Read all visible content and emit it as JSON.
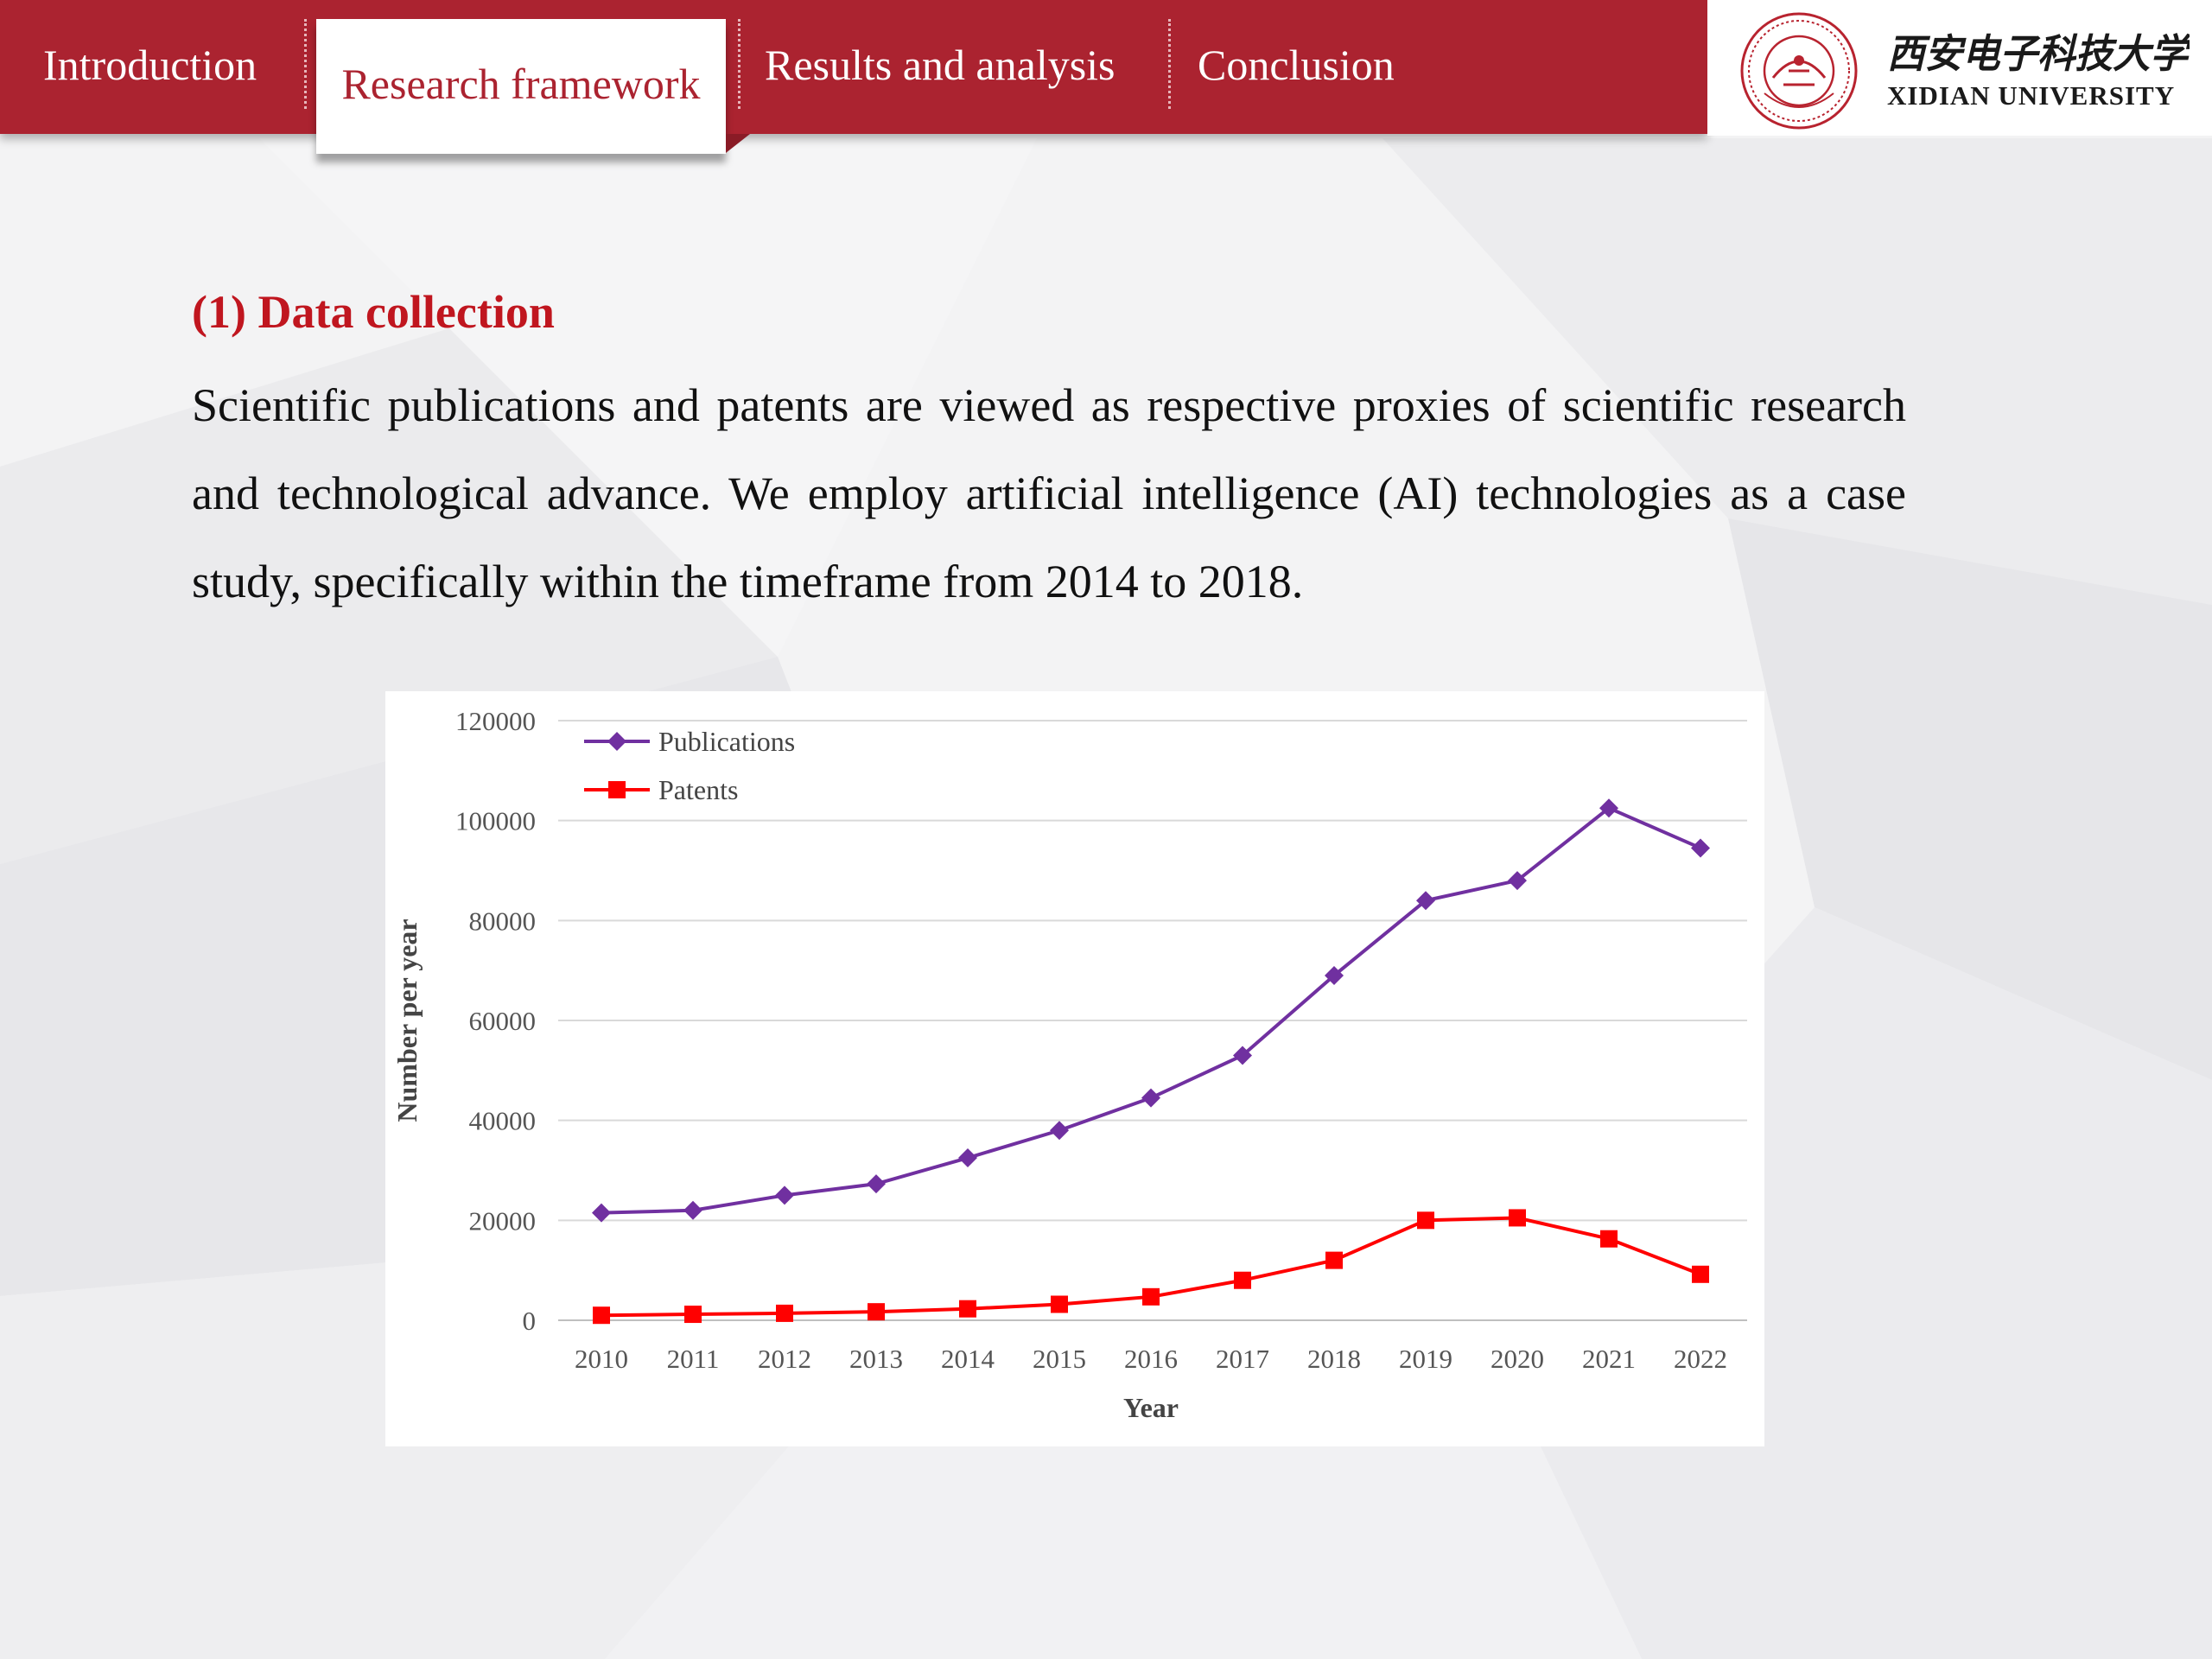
{
  "nav": {
    "tabs": [
      {
        "label": "Introduction"
      },
      {
        "label": "Research framework"
      },
      {
        "label": "Results and analysis"
      },
      {
        "label": "Conclusion"
      }
    ],
    "active_tab_index": 1,
    "accent_color": "#ab2330"
  },
  "logo": {
    "name_cn": "西安电子科技大学",
    "name_en": "XIDIAN UNIVERSITY",
    "seal_icon": "university-seal-icon"
  },
  "section": {
    "title": "(1) Data collection",
    "paragraph": "Scientific publications and patents are viewed as respective proxies of scientific research and technological advance.  We employ artificial intelligence (AI) technologies as a case study, specifically within the timeframe from 2014 to 2018."
  },
  "chart_data": {
    "type": "line",
    "title": "",
    "xlabel": "Year",
    "ylabel": "Number per year",
    "categories": [
      "2010",
      "2011",
      "2012",
      "2013",
      "2014",
      "2015",
      "2016",
      "2017",
      "2018",
      "2019",
      "2020",
      "2021",
      "2022"
    ],
    "yticks": [
      "0",
      "20000",
      "40000",
      "60000",
      "80000",
      "100000",
      "120000"
    ],
    "ylim": [
      0,
      120000
    ],
    "grid": "horizontal",
    "legend_position": "top-left",
    "series": [
      {
        "name": "Publications",
        "marker": "diamond",
        "color": "#7030a0",
        "values": [
          21500,
          22000,
          25000,
          27300,
          32500,
          38000,
          44500,
          53000,
          69000,
          84000,
          88000,
          102500,
          94500
        ]
      },
      {
        "name": "Patents",
        "marker": "square",
        "color": "#ff0000",
        "values": [
          1000,
          1200,
          1400,
          1700,
          2300,
          3200,
          4700,
          8000,
          12000,
          20000,
          20500,
          16300,
          9200
        ]
      }
    ]
  }
}
